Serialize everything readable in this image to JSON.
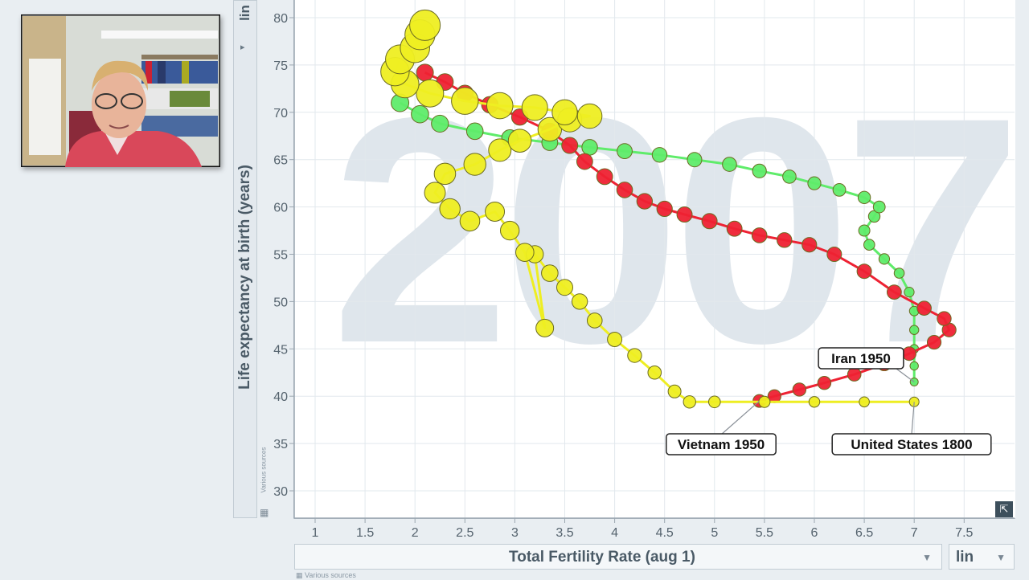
{
  "chart_data": {
    "type": "scatter",
    "watermark": "2007",
    "xlabel": "Total Fertility Rate (aug 1)",
    "ylabel": "Life expectancy at birth (years)",
    "x_scale": "lin",
    "y_scale": "lin",
    "xlim": [
      0.8,
      7.9
    ],
    "ylim": [
      26.5,
      81
    ],
    "x_ticks": [
      "1",
      "1.5",
      "2",
      "2.5",
      "3",
      "3.5",
      "4",
      "4.5",
      "5",
      "5.5",
      "6",
      "6.5",
      "7",
      "7.5"
    ],
    "y_ticks": [
      "30",
      "35",
      "40",
      "45",
      "50",
      "55",
      "60",
      "65",
      "70",
      "75",
      "80"
    ],
    "grid": true,
    "source_note": "Various sources",
    "series": [
      {
        "label_at_start": "United States 1800",
        "color": "#5fec6a",
        "points": [
          [
            7.0,
            41.5
          ],
          [
            7.0,
            43.2
          ],
          [
            7.0,
            45.0
          ],
          [
            7.0,
            47.0
          ],
          [
            7.0,
            49.0
          ],
          [
            6.95,
            51.0
          ],
          [
            6.85,
            53.0
          ],
          [
            6.7,
            54.5
          ],
          [
            6.55,
            56.0
          ],
          [
            6.5,
            57.5
          ],
          [
            6.6,
            59.0
          ],
          [
            6.65,
            60.0
          ],
          [
            6.5,
            61.0
          ],
          [
            6.25,
            61.8
          ],
          [
            6.0,
            62.5
          ],
          [
            5.75,
            63.2
          ],
          [
            5.45,
            63.8
          ],
          [
            5.15,
            64.5
          ],
          [
            4.8,
            65.0
          ],
          [
            4.45,
            65.5
          ],
          [
            4.1,
            65.9
          ],
          [
            3.75,
            66.3
          ],
          [
            3.35,
            66.8
          ],
          [
            2.95,
            67.3
          ],
          [
            2.6,
            68.0
          ],
          [
            2.25,
            68.8
          ],
          [
            2.05,
            69.8
          ],
          [
            1.85,
            71.0
          ]
        ]
      },
      {
        "label_at_start": "Iran 1950",
        "color": "#ee2233",
        "points": [
          [
            5.45,
            39.5
          ],
          [
            5.6,
            40.0
          ],
          [
            5.85,
            40.7
          ],
          [
            6.1,
            41.4
          ],
          [
            6.4,
            42.3
          ],
          [
            6.7,
            43.4
          ],
          [
            6.95,
            44.5
          ],
          [
            7.2,
            45.7
          ],
          [
            7.35,
            47.0
          ],
          [
            7.3,
            48.2
          ],
          [
            7.1,
            49.3
          ],
          [
            6.8,
            51.0
          ],
          [
            6.5,
            53.2
          ],
          [
            6.2,
            55.0
          ],
          [
            5.95,
            56.0
          ],
          [
            5.7,
            56.5
          ],
          [
            5.45,
            57.0
          ],
          [
            5.2,
            57.7
          ],
          [
            4.95,
            58.5
          ],
          [
            4.7,
            59.2
          ],
          [
            4.5,
            59.8
          ],
          [
            4.3,
            60.6
          ],
          [
            4.1,
            61.8
          ],
          [
            3.9,
            63.2
          ],
          [
            3.7,
            64.8
          ],
          [
            3.55,
            66.5
          ],
          [
            3.35,
            68.0
          ],
          [
            3.05,
            69.5
          ],
          [
            2.75,
            70.8
          ],
          [
            2.5,
            72.0
          ],
          [
            2.3,
            73.2
          ],
          [
            2.1,
            74.2
          ]
        ]
      },
      {
        "label_at_start": "Vietnam 1950",
        "color": "#eeee22",
        "points": [
          [
            7.0,
            39.4
          ],
          [
            6.5,
            39.4
          ],
          [
            6.0,
            39.4
          ],
          [
            5.5,
            39.4
          ],
          [
            5.0,
            39.4
          ],
          [
            4.75,
            39.4
          ],
          [
            4.6,
            40.5
          ],
          [
            4.4,
            42.5
          ],
          [
            4.2,
            44.3
          ],
          [
            4.0,
            46.0
          ],
          [
            3.8,
            48.0
          ],
          [
            3.65,
            50.0
          ],
          [
            3.5,
            51.5
          ],
          [
            3.35,
            53.0
          ],
          [
            3.2,
            55.0
          ],
          [
            3.3,
            47.2
          ],
          [
            3.1,
            55.2
          ],
          [
            2.95,
            57.5
          ],
          [
            2.8,
            59.5
          ],
          [
            2.55,
            58.5
          ],
          [
            2.35,
            59.8
          ],
          [
            2.2,
            61.5
          ],
          [
            2.3,
            63.5
          ],
          [
            2.6,
            64.5
          ],
          [
            2.85,
            66.0
          ],
          [
            3.05,
            67.0
          ],
          [
            3.35,
            68.2
          ],
          [
            3.55,
            69.2
          ],
          [
            3.75,
            69.6
          ],
          [
            3.5,
            70.0
          ],
          [
            3.2,
            70.5
          ],
          [
            2.85,
            70.7
          ],
          [
            2.5,
            71.2
          ],
          [
            2.15,
            72.0
          ],
          [
            1.9,
            73.0
          ],
          [
            1.8,
            74.3
          ],
          [
            1.85,
            75.6
          ],
          [
            2.0,
            76.8
          ],
          [
            2.05,
            78.2
          ],
          [
            2.1,
            79.2
          ]
        ]
      }
    ]
  }
}
